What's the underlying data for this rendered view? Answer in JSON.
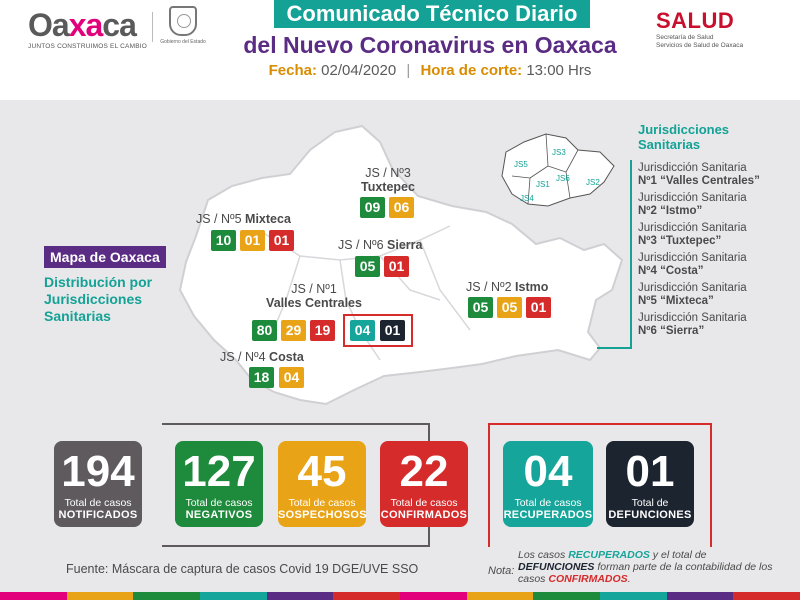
{
  "header": {
    "logo_word_left": "Oa",
    "logo_word_mid": "xa",
    "logo_word_right": "ca",
    "logo_tagline": "JUNTOS CONSTRUIMOS EL CAMBIO",
    "gov_text": "Gobierno del Estado",
    "title_line1": "Comunicado Técnico Diario",
    "title_line2": "del Nuevo Coronavirus en Oaxaca",
    "fecha_label": "Fecha:",
    "fecha_value": "02/04/2020",
    "hora_label": "Hora de corte:",
    "hora_value": "13:00 Hrs",
    "salud_word": "SALUD",
    "salud_sub1": "Secretaría de Salud",
    "salud_sub2": "Servicios de Salud de Oaxaca"
  },
  "map": {
    "mapa_tag": "Mapa de Oaxaca",
    "dist_label": "Distribución por Jurisdicciones Sanitarias",
    "js3_prefix": "JS / Nº3",
    "js3_name": "Tuxtepec",
    "js3_values": [
      "09",
      "06"
    ],
    "js5_prefix": "JS / Nº5",
    "js5_name": "Mixteca",
    "js5_values": [
      "10",
      "01",
      "01"
    ],
    "js6_prefix": "JS / Nº6",
    "js6_name": "Sierra",
    "js6_values": [
      "05",
      "01"
    ],
    "js2_prefix": "JS / Nº2",
    "js2_name": "Istmo",
    "js2_values": [
      "05",
      "05",
      "01"
    ],
    "js1_prefix": "JS / Nº1",
    "js1_name": "Valles Centrales",
    "js1_values": [
      "80",
      "29",
      "19",
      "04",
      "01"
    ],
    "js4_prefix": "JS / Nº4",
    "js4_name": "Costa",
    "js4_values": [
      "18",
      "04"
    ],
    "mini_labels": [
      "JS5",
      "JS3",
      "JS6",
      "JS1",
      "JS2",
      "JS4"
    ]
  },
  "legend": {
    "title": "Jurisdicciones Sanitarias",
    "items": [
      {
        "line1": "Jurisdicción Sanitaria",
        "line2": "Nº1 “Valles Centrales”"
      },
      {
        "line1": "Jurisdicción Sanitaria",
        "line2": "Nº2 “Istmo”"
      },
      {
        "line1": "Jurisdicción Sanitaria",
        "line2": "Nº3 “Tuxtepec”"
      },
      {
        "line1": "Jurisdicción Sanitaria",
        "line2": "Nº4 “Costa”"
      },
      {
        "line1": "Jurisdicción Sanitaria",
        "line2": "Nº5 “Mixteca”"
      },
      {
        "line1": "Jurisdicción Sanitaria",
        "line2": "Nº6 “Sierra”"
      }
    ]
  },
  "totals": [
    {
      "num": "194",
      "sub": "Total de casos",
      "big": "NOTIFICADOS"
    },
    {
      "num": "127",
      "sub": "Total de casos",
      "big": "NEGATIVOS"
    },
    {
      "num": "45",
      "sub": "Total de casos",
      "big": "SOSPECHOSOS"
    },
    {
      "num": "22",
      "sub": "Total de casos",
      "big": "CONFIRMADOS"
    },
    {
      "num": "04",
      "sub": "Total de casos",
      "big": "RECUPERADOS"
    },
    {
      "num": "01",
      "sub": "Total de",
      "big": "DEFUNCIONES"
    }
  ],
  "footer": {
    "fuente": "Fuente: Máscara de captura de casos Covid 19 DGE/UVE SSO",
    "nota_label": "Nota:",
    "nota_p1": "Los casos ",
    "nota_recuperados": "RECUPERADOS",
    "nota_p2": " y el total de ",
    "nota_defunciones": "DEFUNCIONES",
    "nota_p3": " forman parte de la contabilidad de los casos ",
    "nota_confirmados": "CONFIRMADOS",
    "nota_p4": "."
  },
  "colors": {
    "teal": "#16a59a",
    "purple": "#5b2c83",
    "green": "#1e8a3c",
    "orange": "#e8a317",
    "red": "#d52b2b",
    "dark": "#1c2430",
    "grey": "#5e5a5d"
  }
}
